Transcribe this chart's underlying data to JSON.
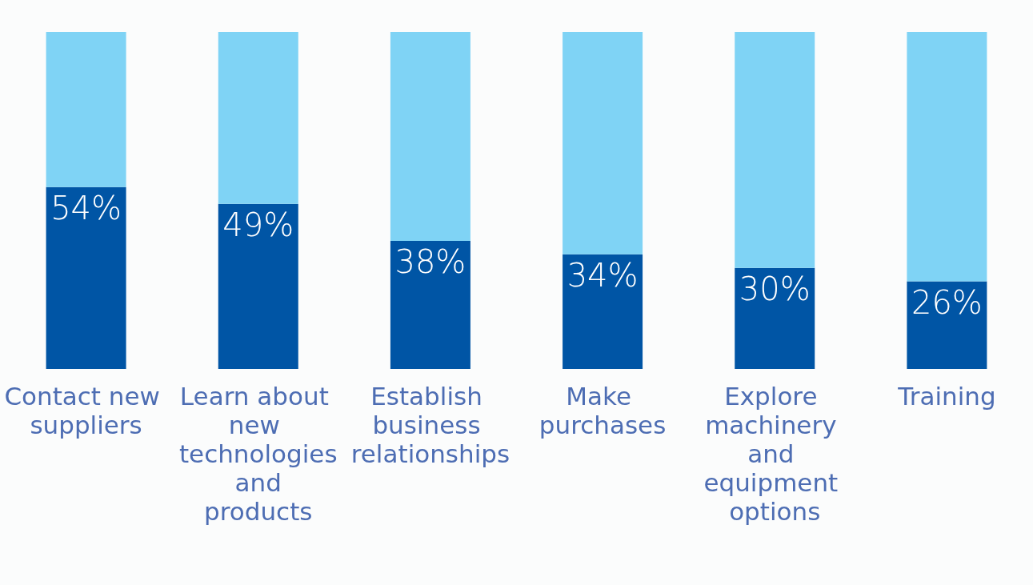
{
  "chart_data": {
    "type": "bar",
    "stacked": true,
    "ylim": [
      0,
      100
    ],
    "tick_labels": "x",
    "categories": [
      "Contact new suppliers",
      "Learn about new technologies and products",
      "Establish business relationships",
      "Make purchases",
      "Explore machinery and equipment options",
      "Training"
    ],
    "series": [
      {
        "color": "#0055a5",
        "values": [
          54,
          49,
          38,
          34,
          30,
          26
        ],
        "value_labels": [
          "54%",
          "49%",
          "38%",
          "34%",
          "30%",
          "26%"
        ]
      },
      {
        "color": "#7fd3f5",
        "values": [
          46,
          51,
          62,
          66,
          70,
          74
        ]
      }
    ]
  }
}
